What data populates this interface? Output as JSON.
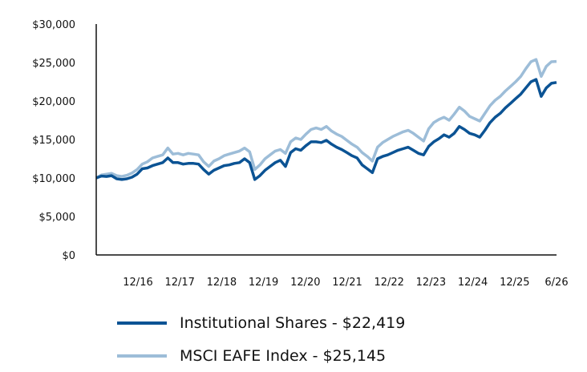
{
  "chart_data": {
    "type": "line",
    "xlabel": "",
    "ylabel": "",
    "x_tick_labels": [
      "12/16",
      "12/17",
      "12/18",
      "12/19",
      "12/20",
      "12/21",
      "12/22",
      "12/23",
      "12/24",
      "12/25",
      "6/26"
    ],
    "y_tick_labels": [
      "$0",
      "$5,000",
      "$10,000",
      "$15,000",
      "$20,000",
      "$25,000",
      "$30,000"
    ],
    "y_ticks": [
      0,
      5000,
      10000,
      15000,
      20000,
      25000,
      30000
    ],
    "ylim": [
      0,
      30000
    ],
    "grid": false,
    "legend_position": "bottom",
    "series": [
      {
        "name": "Institutional Shares - $22,419",
        "color": "#0b5394",
        "values": [
          10000,
          10250,
          10200,
          10300,
          9900,
          9800,
          9900,
          10100,
          10500,
          11200,
          11300,
          11600,
          11800,
          12000,
          12600,
          12000,
          12000,
          11800,
          11900,
          11900,
          11800,
          11100,
          10500,
          11000,
          11300,
          11600,
          11700,
          11900,
          12000,
          12500,
          12000,
          9800,
          10300,
          11000,
          11500,
          12000,
          12300,
          11500,
          13300,
          13800,
          13600,
          14200,
          14700,
          14700,
          14600,
          14900,
          14400,
          14000,
          13700,
          13300,
          12900,
          12600,
          11700,
          11200,
          10700,
          12500,
          12800,
          13000,
          13300,
          13600,
          13800,
          14000,
          13600,
          13200,
          13000,
          14100,
          14700,
          15100,
          15600,
          15300,
          15800,
          16700,
          16300,
          15800,
          15600,
          15300,
          16200,
          17200,
          17900,
          18400,
          19100,
          19700,
          20300,
          20900,
          21700,
          22500,
          22800,
          20600,
          21700,
          22300,
          22419
        ]
      },
      {
        "name": "MSCI EAFE Index - $25,145",
        "color": "#9dbdd8",
        "values": [
          10000,
          10400,
          10500,
          10600,
          10300,
          10200,
          10350,
          10650,
          11100,
          11800,
          12100,
          12600,
          12800,
          13000,
          13900,
          13100,
          13200,
          13000,
          13200,
          13100,
          13000,
          12100,
          11500,
          12200,
          12500,
          12900,
          13100,
          13300,
          13500,
          13900,
          13400,
          11100,
          11700,
          12500,
          13000,
          13500,
          13700,
          13200,
          14700,
          15200,
          15000,
          15700,
          16300,
          16500,
          16300,
          16700,
          16100,
          15700,
          15400,
          14900,
          14400,
          14000,
          13300,
          12800,
          12200,
          14000,
          14600,
          15000,
          15400,
          15700,
          16000,
          16200,
          15800,
          15300,
          14800,
          16400,
          17200,
          17600,
          17900,
          17500,
          18300,
          19200,
          18700,
          18000,
          17700,
          17400,
          18400,
          19400,
          20100,
          20600,
          21300,
          21900,
          22500,
          23200,
          24200,
          25100,
          25400,
          23200,
          24500,
          25100,
          25145
        ]
      }
    ]
  }
}
